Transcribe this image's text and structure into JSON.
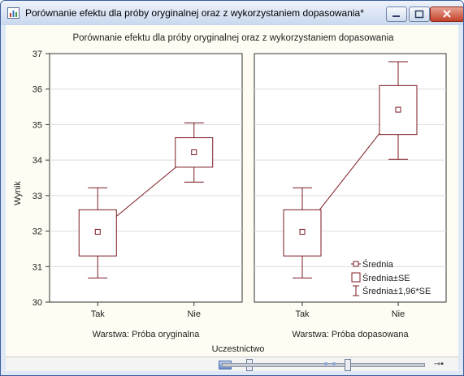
{
  "window": {
    "title": "Porównanie efektu dla próby oryginalnej oraz z wykorzystaniem dopasowania*",
    "icon": "chart-document-icon",
    "controls": [
      "minimize-icon",
      "maximize-icon",
      "close-icon"
    ]
  },
  "chart_data": {
    "type": "line",
    "title": "Porównanie efektu dla próby oryginalnej oraz z wykorzystaniem dopasowania",
    "ylabel": "Wynik",
    "xlabel": "Uczestnictwo",
    "ylim": [
      30,
      37
    ],
    "yticks": [
      30,
      31,
      32,
      33,
      34,
      35,
      36,
      37
    ],
    "categories": [
      "Tak",
      "Nie"
    ],
    "grid": "horizontal",
    "legend_position": "bottom-right",
    "legend": [
      "Średnia",
      "Średnia±SE",
      "Średnia±1,96*SE"
    ],
    "series_color": "#7b1b22",
    "panels": [
      {
        "label": "Warstwa: Próba oryginalna",
        "mean": [
          31.98,
          34.22
        ],
        "se_low": [
          31.3,
          33.8
        ],
        "se_high": [
          32.6,
          34.63
        ],
        "ci_low": [
          30.68,
          33.38
        ],
        "ci_high": [
          33.22,
          35.05
        ]
      },
      {
        "label": "Warstwa: Próba dopasowana",
        "mean": [
          31.98,
          35.42
        ],
        "se_low": [
          31.3,
          34.72
        ],
        "se_high": [
          32.6,
          36.1
        ],
        "ci_low": [
          30.68,
          34.02
        ],
        "ci_high": [
          33.22,
          36.77
        ]
      }
    ]
  }
}
